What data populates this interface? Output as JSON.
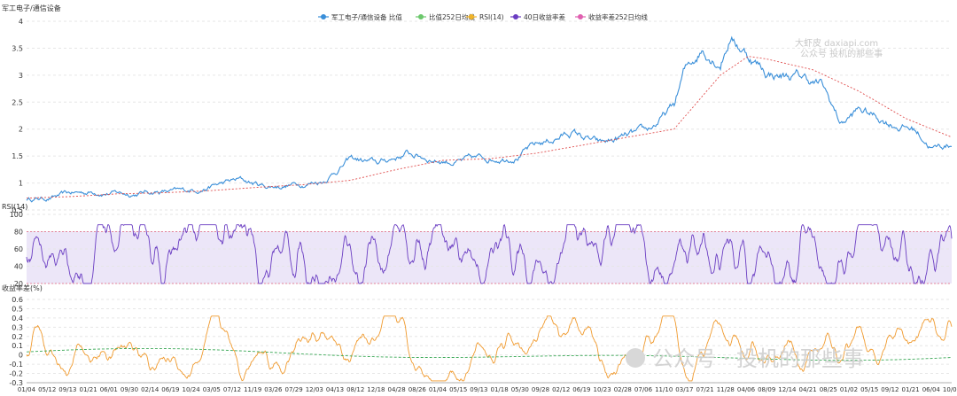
{
  "chart_data": [
    {
      "type": "line",
      "ylabel": "军工电子/通信设备",
      "ylim": [
        0.5,
        4
      ],
      "yticks": [
        "0.5",
        "1",
        "1.5",
        "2",
        "2.5",
        "3",
        "3.5",
        "4"
      ],
      "grid": true,
      "legend_position": "top",
      "series": [
        {
          "name": "军工电子/通信设备 比值",
          "color": "#3a8fd9",
          "x": [
            0,
            0.02,
            0.05,
            0.08,
            0.11,
            0.14,
            0.17,
            0.2,
            0.23,
            0.26,
            0.29,
            0.32,
            0.35,
            0.38,
            0.41,
            0.44,
            0.47,
            0.5,
            0.53,
            0.56,
            0.59,
            0.62,
            0.65,
            0.67,
            0.7,
            0.71,
            0.73,
            0.75,
            0.76,
            0.78,
            0.8,
            0.82,
            0.84,
            0.86,
            0.88,
            0.9,
            0.93,
            0.96,
            0.98,
            1.0
          ],
          "values": [
            0.7,
            0.72,
            0.8,
            0.85,
            0.8,
            0.85,
            0.83,
            0.95,
            1.05,
            0.93,
            0.98,
            1.05,
            1.45,
            1.35,
            1.55,
            1.45,
            1.4,
            1.45,
            1.55,
            1.75,
            1.95,
            1.7,
            1.85,
            1.9,
            2.4,
            3.0,
            3.5,
            3.3,
            3.75,
            3.4,
            3.05,
            3.0,
            2.95,
            2.8,
            2.1,
            2.35,
            2.15,
            2.0,
            1.65,
            1.72
          ]
        },
        {
          "name": "比值252日均线",
          "color": "#6cc86c",
          "x": [],
          "values": []
        },
        {
          "name": "RSI(14)",
          "color": "#f0b429",
          "x": [],
          "values": []
        },
        {
          "name": "40日收益率差",
          "color": "#6a3dc2",
          "x": [],
          "values": []
        },
        {
          "name": "收益率差252日均线",
          "color": "#e060b0",
          "x": [
            0.0,
            0.05,
            0.1,
            0.15,
            0.2,
            0.25,
            0.3,
            0.35,
            0.4,
            0.45,
            0.5,
            0.55,
            0.6,
            0.65,
            0.7,
            0.75,
            0.78,
            0.8,
            0.85,
            0.9,
            0.95,
            1.0
          ],
          "values": [
            0.72,
            0.75,
            0.8,
            0.82,
            0.86,
            0.92,
            0.97,
            1.05,
            1.25,
            1.42,
            1.45,
            1.55,
            1.7,
            1.85,
            2.0,
            3.0,
            3.35,
            3.3,
            3.1,
            2.7,
            2.2,
            1.85
          ]
        }
      ]
    },
    {
      "type": "line",
      "ylabel": "RSI(14)",
      "ylim": [
        20,
        100
      ],
      "yticks": [
        "20",
        "40",
        "60",
        "80",
        "100"
      ],
      "grid": true,
      "bands": {
        "upper": 80,
        "lower": 20,
        "band_color": "#ece6f8",
        "line_color": "#e06080"
      },
      "series": [
        {
          "name": "RSI(14)",
          "color": "#6a3dc2",
          "note": "oscillating between ~20 and ~88"
        }
      ]
    },
    {
      "type": "line",
      "ylabel": "收益率差(%)",
      "ylim": [
        -0.3,
        0.6
      ],
      "yticks": [
        "-0.3",
        "-0.2",
        "-0.1",
        "0",
        "0.1",
        "0.2",
        "0.3",
        "0.4",
        "0.5",
        "0.6"
      ],
      "grid": true,
      "series": [
        {
          "name": "40日收益率差",
          "color": "#f09a2e",
          "note": "oscillating mostly between -0.2 and 0.3, peak ~0.4"
        },
        {
          "name": "收益率差252日均线",
          "color": "#3aa856",
          "note": "smooth near 0, dashed"
        }
      ]
    }
  ],
  "x_ticks": [
    "01/04",
    "05/12",
    "09/13",
    "01/21",
    "06/01",
    "09/30",
    "02/14",
    "06/19",
    "10/24",
    "03/05",
    "07/12",
    "11/19",
    "03/26",
    "07/29",
    "12/03",
    "04/13",
    "08/12",
    "12/18",
    "04/28",
    "08/26",
    "01/04",
    "05/15",
    "09/13",
    "01/18",
    "05/30",
    "09/28",
    "02/12",
    "06/19",
    "10/23",
    "02/28",
    "07/06",
    "11/10",
    "03/17",
    "07/21",
    "11/28",
    "04/06",
    "08/09",
    "12/14",
    "04/21",
    "08/25",
    "01/02",
    "05/15",
    "09/12",
    "01/21",
    "06/04",
    "10/09"
  ],
  "watermark": {
    "line1": "大虾皮 daxiapi.com",
    "line2": "公众号 投机的那些事",
    "big": "公众号 · 投机的那些事"
  }
}
